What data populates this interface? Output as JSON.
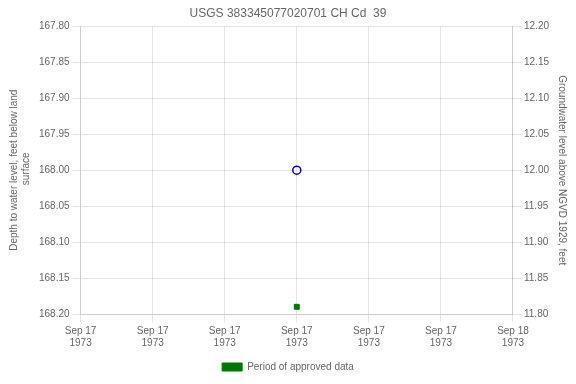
{
  "chart_data": {
    "type": "scatter",
    "title": "USGS 383345077020701 CH Cd  39",
    "x": [
      12
    ],
    "xlim": [
      0,
      24
    ],
    "xticks": [
      {
        "value": 0,
        "label": "Sep 17\n1973"
      },
      {
        "value": 4,
        "label": "Sep 17\n1973"
      },
      {
        "value": 8,
        "label": "Sep 17\n1973"
      },
      {
        "value": 12,
        "label": "Sep 17\n1973"
      },
      {
        "value": 16,
        "label": "Sep 17\n1973"
      },
      {
        "value": 20,
        "label": "Sep 17\n1973"
      },
      {
        "value": 24,
        "label": "Sep 18\n1973"
      }
    ],
    "ylabel": "Depth to water level, feet below land\n surface",
    "ylim": [
      168.2,
      167.8
    ],
    "yticks": [
      {
        "value": 167.8,
        "label": "167.80"
      },
      {
        "value": 167.85,
        "label": "167.85"
      },
      {
        "value": 167.9,
        "label": "167.90"
      },
      {
        "value": 167.95,
        "label": "167.95"
      },
      {
        "value": 168.0,
        "label": "168.00"
      },
      {
        "value": 168.05,
        "label": "168.05"
      },
      {
        "value": 168.1,
        "label": "168.10"
      },
      {
        "value": 168.15,
        "label": "168.15"
      },
      {
        "value": 168.2,
        "label": "168.20"
      }
    ],
    "y2label": "Groundwater level above NGVD 1929, feet",
    "y2lim": [
      11.8,
      12.2
    ],
    "y2ticks": [
      {
        "value": 12.2,
        "label": "12.20"
      },
      {
        "value": 12.15,
        "label": "12.15"
      },
      {
        "value": 12.1,
        "label": "12.10"
      },
      {
        "value": 12.05,
        "label": "12.05"
      },
      {
        "value": 12.0,
        "label": "12.00"
      },
      {
        "value": 11.95,
        "label": "11.95"
      },
      {
        "value": 11.9,
        "label": "11.90"
      },
      {
        "value": 11.85,
        "label": "11.85"
      },
      {
        "value": 11.8,
        "label": "11.80"
      }
    ],
    "series": [
      {
        "color": "#0000cc",
        "marker": "circle_open",
        "values": [
          168.0
        ]
      },
      {
        "name": "Period of approved data",
        "color": "#007700",
        "marker": "square",
        "values": [
          168.19
        ]
      }
    ],
    "grid": true,
    "legend": "bottom"
  }
}
